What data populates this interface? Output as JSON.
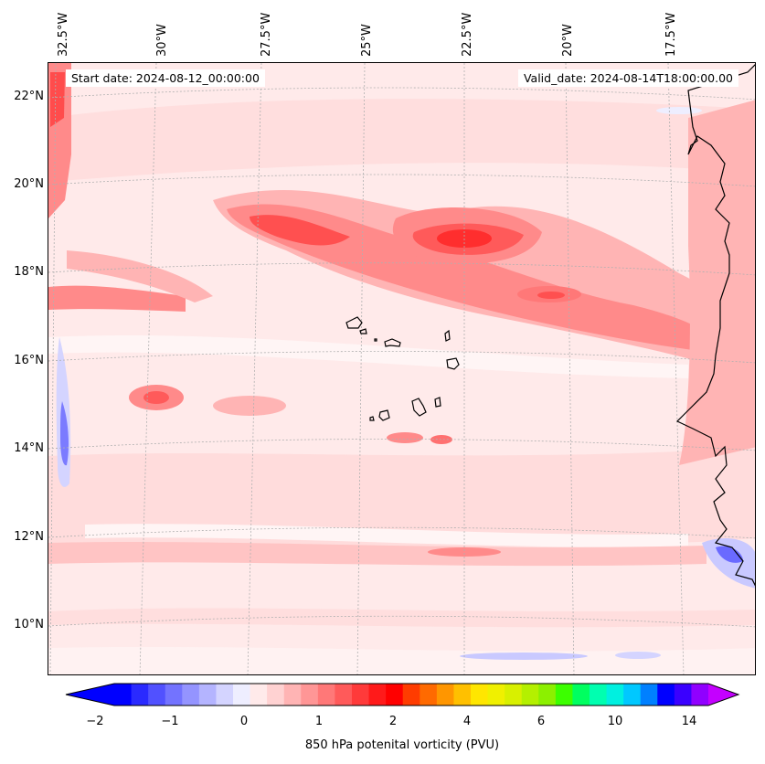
{
  "map": {
    "start_date_text": "Start date: 2024-08-12_00:00:00",
    "valid_date_text": "Valid_date: 2024-08-14T18:00:00.00",
    "lon_labels": [
      "32.5°W",
      "30°W",
      "27.5°W",
      "25°W",
      "22.5°W",
      "20°W",
      "17.5°W"
    ],
    "lat_labels": [
      "22°N",
      "20°N",
      "18°N",
      "16°N",
      "14°N",
      "12°N",
      "10°N"
    ]
  },
  "colorbar": {
    "label": "850 hPa potenital vorticity (PVU)",
    "tick_labels": [
      "−2",
      "−1",
      "0",
      "1",
      "2",
      "4",
      "6",
      "10",
      "14"
    ],
    "colors": [
      "#0000ff",
      "#2a2aff",
      "#5151ff",
      "#7373ff",
      "#9494ff",
      "#b4b4ff",
      "#d4d4ff",
      "#eeeeff",
      "#ffeaea",
      "#ffd2d2",
      "#ffb4b4",
      "#ff9696",
      "#ff7878",
      "#ff5a5a",
      "#ff3a3a",
      "#ff1a1a",
      "#ff0000",
      "#ff3c00",
      "#ff6a00",
      "#ff9600",
      "#ffc000",
      "#ffe600",
      "#f0f000",
      "#d8f000",
      "#b4f000",
      "#8cf000",
      "#3cff00",
      "#00ff60",
      "#00ffb0",
      "#00f0e0",
      "#00c8ff",
      "#0080ff",
      "#0000ff",
      "#3a00ff",
      "#9000ff"
    ],
    "colors_extend_low": "#0000ff",
    "colors_extend_high": "#c400ff"
  },
  "colors": {
    "weak_positive": "#ffb4b4",
    "medium_positive": "#ff7d7d",
    "strong_positive": "#ff4444",
    "negative": "#c9c9ff"
  }
}
